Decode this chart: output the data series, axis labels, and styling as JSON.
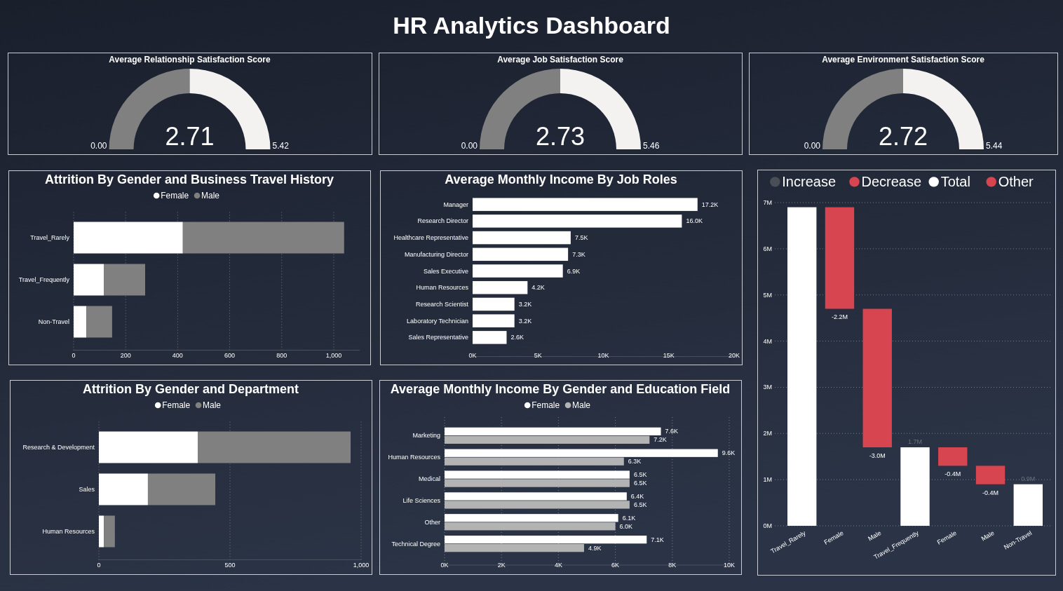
{
  "chart_data": [
    {
      "type": "other",
      "title": "HR Analytics Dashboard"
    },
    {
      "type": "donut",
      "title": "Average Relationship Satisfaction Score",
      "categories": [
        null,
        null
      ],
      "values": [
        50,
        50
      ],
      "colors": [
        "#808080",
        "#f3f2f1"
      ],
      "annotations": [
        "2.71",
        "0.00",
        "5.42"
      ]
    },
    {
      "type": "donut",
      "title": "Average Job Satisfaction Score",
      "categories": [
        null,
        null
      ],
      "values": [
        50,
        50
      ],
      "colors": [
        "#808080",
        "#f3f2f1"
      ],
      "annotations": [
        "2.73",
        "0.00",
        "5.46"
      ]
    },
    {
      "type": "donut",
      "title": "Average Environment Satisfaction Score",
      "categories": [
        null,
        null
      ],
      "values": [
        50,
        50
      ],
      "colors": [
        "#808080",
        "#f3f2f1"
      ],
      "annotations": [
        "2.72",
        "0.00",
        "5.44"
      ]
    },
    {
      "type": "bar",
      "title": "Attrition By Gender and Business Travel History",
      "orientation": "horizontal",
      "stacked": true,
      "categories": [
        "Travel_Rarely",
        "Travel_Frequently",
        "Non-Travel"
      ],
      "series": [
        {
          "name": "Female",
          "color": "#ffffff",
          "values": [
            420,
            116,
            49
          ]
        },
        {
          "name": "Male",
          "color": "#808080",
          "values": [
            620,
            159,
            99
          ]
        }
      ],
      "xlim": [
        0,
        1100
      ],
      "xticks": [
        0,
        200,
        400,
        600,
        800,
        {
          "value": 1000,
          "label": "1,000"
        }
      ],
      "grid": "x",
      "legend": "top"
    },
    {
      "type": "bar",
      "title": "Average Monthly Income By Job Roles",
      "orientation": "horizontal",
      "categories": [
        "Manager",
        "Research Director",
        "Healthcare Representative",
        "Manufacturing Director",
        "Sales Executive",
        "Human Resources",
        "Research Scientist",
        "Laboratory Technician",
        "Sales Representative"
      ],
      "values": [
        17.2,
        16.0,
        7.5,
        7.3,
        6.9,
        4.2,
        3.2,
        3.2,
        2.6
      ],
      "color": "#ffffff",
      "value_labels": [
        "17.2K",
        "16.0K",
        "7.5K",
        "7.3K",
        "6.9K",
        "4.2K",
        "3.2K",
        "3.2K",
        "2.6K"
      ],
      "xlim": [
        0,
        20
      ],
      "xticks": [
        {
          "value": 0,
          "label": "0K"
        },
        {
          "value": 5,
          "label": "5K"
        },
        {
          "value": 10,
          "label": "10K"
        },
        {
          "value": 15,
          "label": "15K"
        },
        {
          "value": 20,
          "label": "20K"
        }
      ]
    },
    {
      "type": "bar",
      "categories": [
        "Travel_Rarely",
        "Female",
        "Male",
        "Travel_Frequently",
        "Female",
        "Male",
        "Non-Travel"
      ],
      "base": [
        0,
        6.9,
        4.7,
        0,
        1.7,
        1.3,
        0
      ],
      "values": [
        6.9,
        -2.2,
        -3.0,
        1.7,
        -0.4,
        -0.4,
        0.9
      ],
      "colors": [
        "#ffffff",
        "#d64550",
        "#d64550",
        "#ffffff",
        "#d64550",
        "#d64550",
        "#ffffff"
      ],
      "value_labels": [
        null,
        "-2.2M",
        "-3.0M",
        "1.7M",
        "-0.4M",
        "-0.4M",
        "0.9M"
      ],
      "series": [
        {
          "name": "Increase",
          "color": "#4a4f57",
          "values": [
            null,
            null,
            null,
            null,
            null,
            null,
            null
          ]
        },
        {
          "name": "Decrease",
          "color": "#d64550",
          "values": [
            null,
            null,
            null,
            null,
            null,
            null,
            null
          ]
        },
        {
          "name": "Total",
          "color": "#ffffff",
          "values": [
            null,
            null,
            null,
            null,
            null,
            null,
            null
          ]
        },
        {
          "name": "Other",
          "color": "#d64550",
          "values": [
            null,
            null,
            null,
            null,
            null,
            null,
            null
          ]
        }
      ],
      "ylim": [
        0,
        7
      ],
      "yticks": [
        {
          "value": 0,
          "label": "0M"
        },
        {
          "value": 1,
          "label": "1M"
        },
        {
          "value": 2,
          "label": "2M"
        },
        {
          "value": 3,
          "label": "3M"
        },
        {
          "value": 4,
          "label": "4M"
        },
        {
          "value": 5,
          "label": "5M"
        },
        {
          "value": 6,
          "label": "6M"
        },
        {
          "value": 7,
          "label": "7M"
        }
      ],
      "grid": "y",
      "legend": "top"
    },
    {
      "type": "bar",
      "title": "Attrition By Gender and Department",
      "orientation": "horizontal",
      "stacked": true,
      "categories": [
        "Research & Development",
        "Sales",
        "Human Resources"
      ],
      "series": [
        {
          "name": "Female",
          "color": "#ffffff",
          "values": [
            377,
            187,
            19
          ]
        },
        {
          "name": "Male",
          "color": "#808080",
          "values": [
            583,
            257,
            42
          ]
        }
      ],
      "xlim": [
        0,
        1000
      ],
      "xticks": [
        0,
        500,
        {
          "value": 1000,
          "label": "1,000"
        }
      ],
      "grid": "x",
      "legend": "top"
    },
    {
      "type": "bar",
      "title": "Average Monthly Income By Gender and Education Field",
      "orientation": "horizontal",
      "categories": [
        "Marketing",
        "Human Resources",
        "Medical",
        "Life Sciences",
        "Other",
        "Technical Degree"
      ],
      "series": [
        {
          "name": "Female",
          "color": "#ffffff",
          "values": [
            7.6,
            9.6,
            6.5,
            6.4,
            6.1,
            7.1
          ],
          "value_labels": [
            "7.6K",
            "9.6K",
            "6.5K",
            "6.4K",
            "6.1K",
            "7.1K"
          ]
        },
        {
          "name": "Male",
          "color": "#b3b3b3",
          "values": [
            7.2,
            6.3,
            6.5,
            6.5,
            6.0,
            4.9
          ],
          "value_labels": [
            "7.2K",
            "6.3K",
            "6.5K",
            "6.5K",
            "6.0K",
            "4.9K"
          ]
        }
      ],
      "xlim": [
        0,
        10
      ],
      "xticks": [
        {
          "value": 0,
          "label": "0K"
        },
        {
          "value": 2,
          "label": "2K"
        },
        {
          "value": 4,
          "label": "4K"
        },
        {
          "value": 6,
          "label": "6K"
        },
        {
          "value": 8,
          "label": "8K"
        },
        {
          "value": 10,
          "label": "10K"
        }
      ],
      "grid": "x",
      "legend": "top"
    }
  ]
}
